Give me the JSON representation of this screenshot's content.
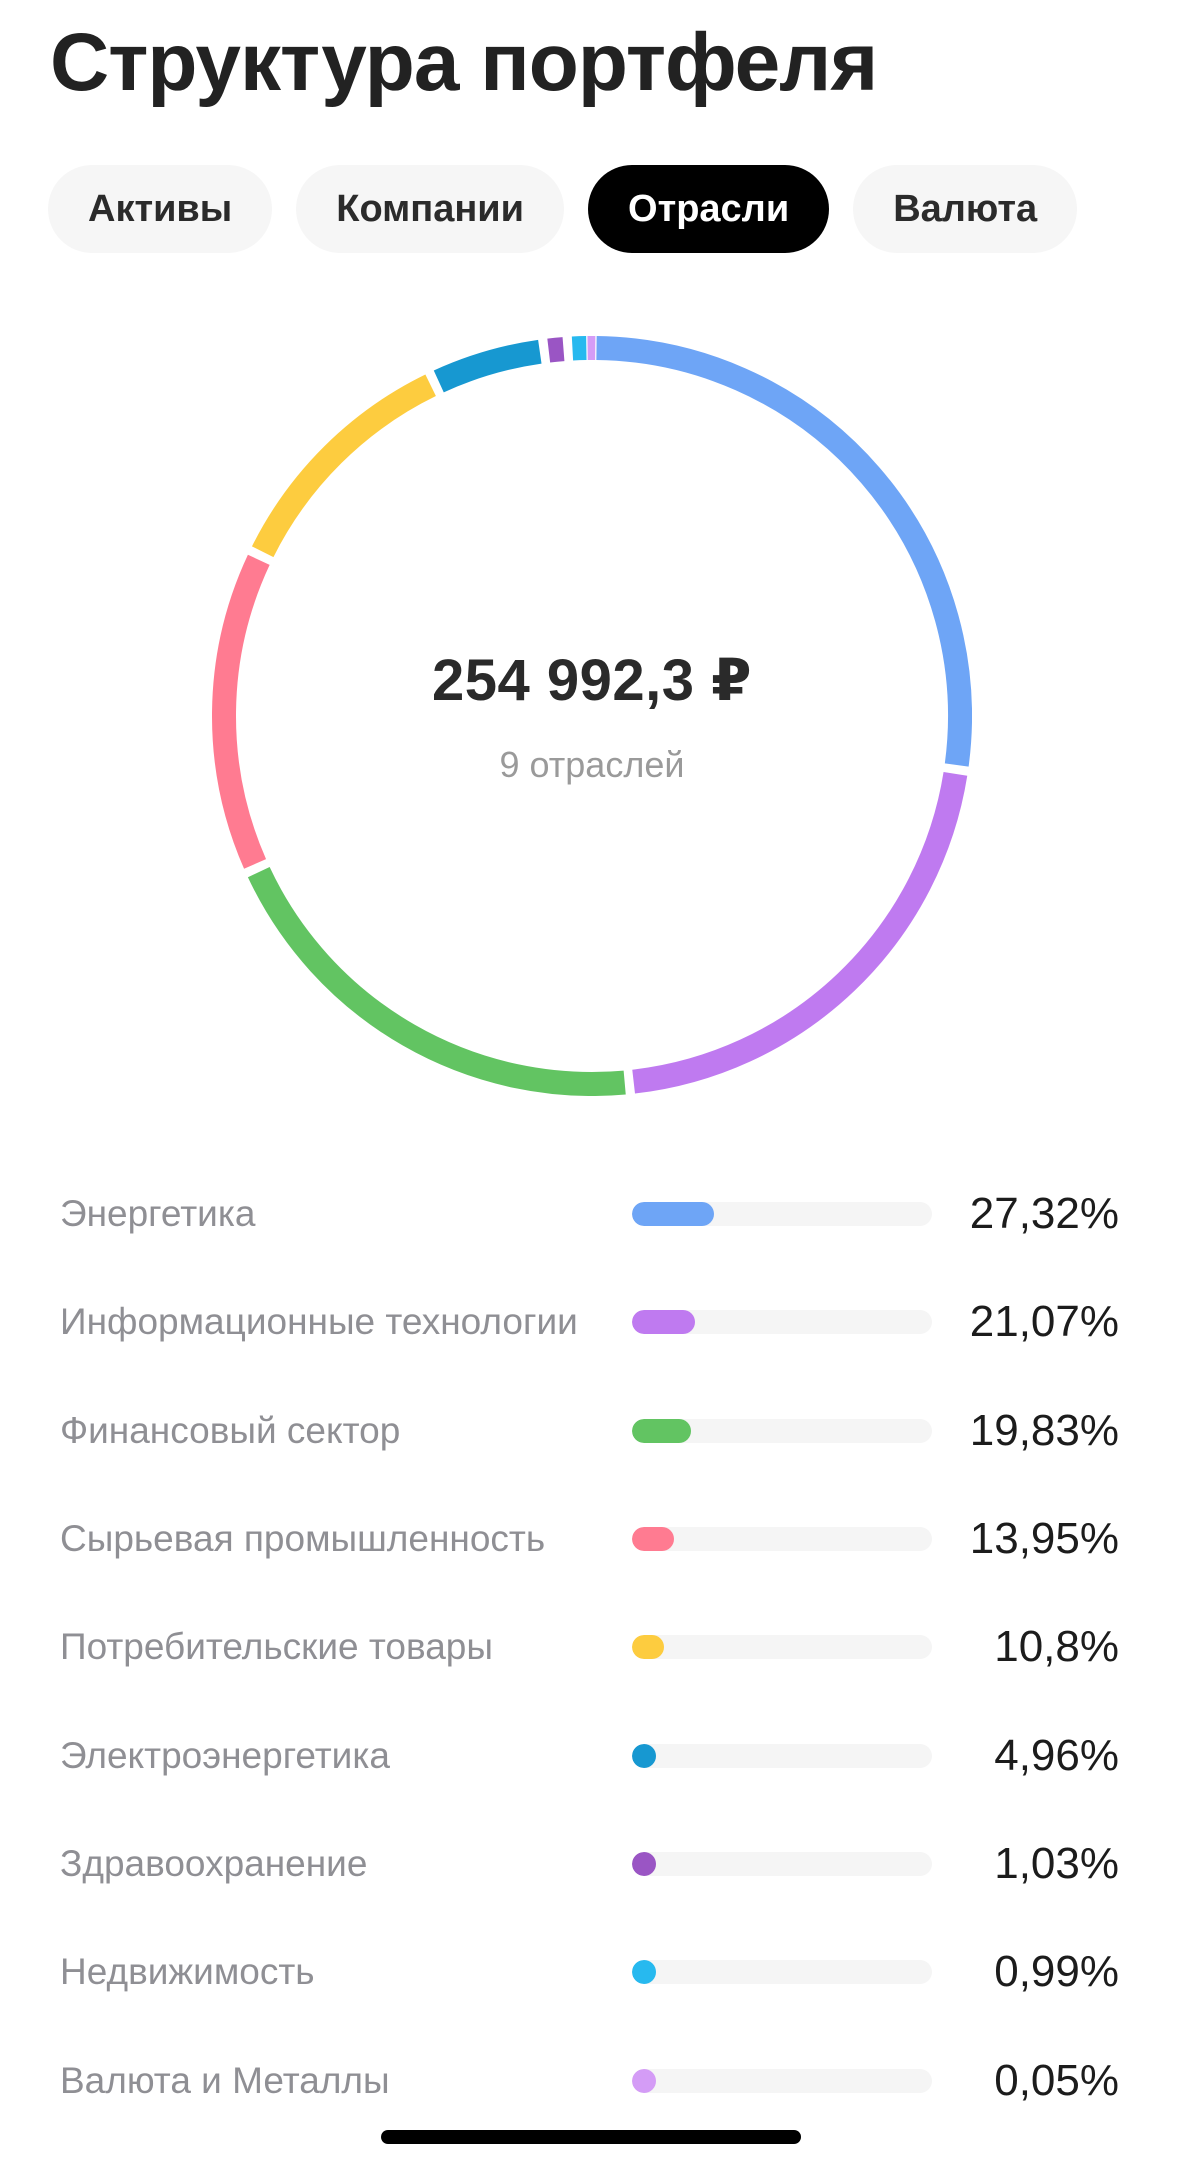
{
  "header": {
    "title": "Структура портфеля"
  },
  "tabs": [
    {
      "label": "Активы",
      "active": false
    },
    {
      "label": "Компании",
      "active": false
    },
    {
      "label": "Отрасли",
      "active": true
    },
    {
      "label": "Валюта",
      "active": false
    }
  ],
  "summary": {
    "total": "254 992,3 ₽",
    "subtitle": "9 отраслей"
  },
  "chart_data": {
    "type": "pie",
    "title": "",
    "categories": [
      "Энергетика",
      "Информационные технологии",
      "Финансовый сектор",
      "Сырьевая промышленность",
      "Потребительские товары",
      "Электроэнергетика",
      "Здравоохранение",
      "Недвижимость",
      "Валюта и Металлы"
    ],
    "values": [
      27.32,
      21.07,
      19.83,
      13.95,
      10.8,
      4.96,
      1.03,
      0.99,
      0.05
    ],
    "colors": [
      "#6ea5f6",
      "#bf7af0",
      "#62c462",
      "#ff7b91",
      "#fdcc3f",
      "#1798d1",
      "#9a55c4",
      "#27b9ef",
      "#d49cf6"
    ]
  },
  "legend": {
    "items": [
      {
        "label": "Энергетика",
        "percent": "27,32%",
        "value": 27.32,
        "color": "#6ea5f6"
      },
      {
        "label": "Информационные технологии",
        "percent": "21,07%",
        "value": 21.07,
        "color": "#bf7af0"
      },
      {
        "label": "Финансовый сектор",
        "percent": "19,83%",
        "value": 19.83,
        "color": "#62c462"
      },
      {
        "label": "Сырьевая промышленность",
        "percent": "13,95%",
        "value": 13.95,
        "color": "#ff7b91"
      },
      {
        "label": "Потребительские товары",
        "percent": "10,8%",
        "value": 10.8,
        "color": "#fdcc3f"
      },
      {
        "label": "Электроэнергетика",
        "percent": "4,96%",
        "value": 4.96,
        "color": "#1798d1"
      },
      {
        "label": "Здравоохранение",
        "percent": "1,03%",
        "value": 1.03,
        "color": "#9a55c4"
      },
      {
        "label": "Недвижимость",
        "percent": "0,99%",
        "value": 0.99,
        "color": "#27b9ef"
      },
      {
        "label": "Валюта и Металлы",
        "percent": "0,05%",
        "value": 0.05,
        "color": "#d49cf6"
      }
    ]
  }
}
